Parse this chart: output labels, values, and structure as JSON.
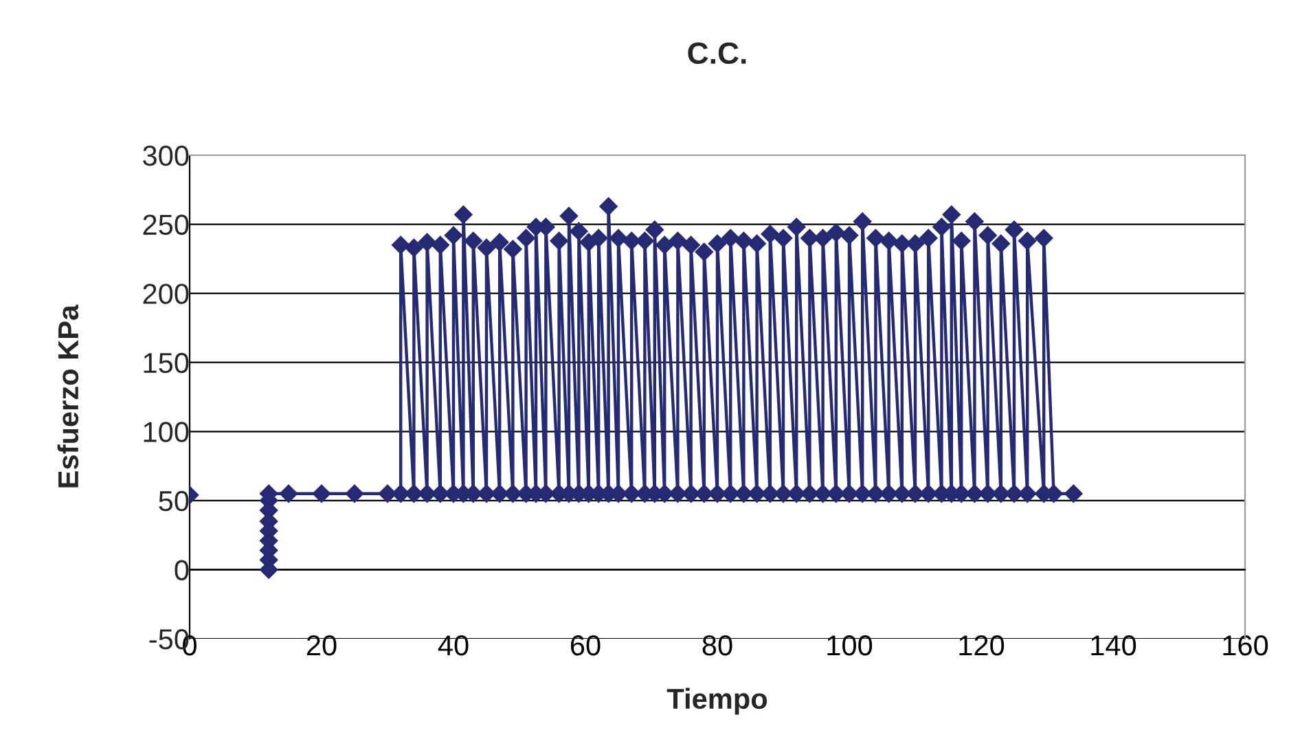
{
  "chart_data": {
    "type": "line",
    "title": "C.C.",
    "xlabel": "Tiempo",
    "ylabel": "Esfuerzo KPa",
    "xlim": [
      0,
      160
    ],
    "xticks": [
      0,
      20,
      40,
      60,
      80,
      100,
      120,
      140,
      160
    ],
    "ylim": [
      -50,
      300
    ],
    "yticks": [
      -50,
      0,
      50,
      100,
      150,
      200,
      250,
      300
    ],
    "grid": "y",
    "legend": false,
    "marker": "diamond",
    "line_style": "solid",
    "series": [
      {
        "color": "#262a73",
        "x": [
          0,
          6,
          12,
          12,
          12,
          12,
          12,
          12,
          12,
          12,
          12,
          15,
          20,
          25,
          30,
          32,
          32,
          34,
          34,
          36,
          36,
          38,
          38,
          40,
          40,
          41.5,
          41.5,
          43,
          43,
          45,
          45,
          47,
          47,
          49,
          49,
          51,
          51,
          52.5,
          52.5,
          54,
          54,
          56,
          56,
          57.5,
          57.5,
          59,
          59,
          60.5,
          60.5,
          62,
          62,
          63.5,
          63.5,
          65,
          65,
          67,
          67,
          69,
          69,
          70.5,
          70.5,
          72,
          72,
          74,
          74,
          76,
          76,
          78,
          78,
          80,
          80,
          82,
          82,
          84,
          84,
          86,
          86,
          88,
          88,
          90,
          90,
          92,
          92,
          94,
          94,
          96,
          96,
          98,
          98,
          100,
          100,
          102,
          102,
          104,
          104,
          106,
          106,
          108,
          108,
          110,
          110,
          112,
          112,
          114,
          114,
          115.5,
          115.5,
          117,
          117,
          119,
          119,
          121,
          121,
          123,
          123,
          125,
          125,
          127,
          127,
          129.5,
          129.5,
          131,
          134
        ],
        "values": [
          54,
          null,
          0,
          7,
          14,
          21,
          28,
          35,
          43,
          50,
          55,
          55,
          55,
          55,
          55,
          55,
          235,
          55,
          233,
          55,
          237,
          55,
          235,
          55,
          242,
          55,
          257,
          55,
          238,
          55,
          233,
          55,
          237,
          55,
          232,
          55,
          240,
          55,
          248,
          55,
          248,
          55,
          238,
          55,
          256,
          55,
          245,
          55,
          237,
          55,
          240,
          55,
          263,
          55,
          240,
          55,
          238,
          55,
          238,
          55,
          246,
          55,
          235,
          55,
          238,
          55,
          235,
          55,
          230,
          55,
          236,
          55,
          240,
          55,
          238,
          55,
          236,
          55,
          243,
          55,
          240,
          55,
          248,
          55,
          240,
          55,
          240,
          55,
          244,
          55,
          242,
          55,
          252,
          55,
          240,
          55,
          238,
          55,
          236,
          55,
          236,
          55,
          240,
          55,
          248,
          55,
          257,
          55,
          238,
          55,
          252,
          55,
          242,
          55,
          236,
          55,
          246,
          55,
          238,
          55,
          240,
          55,
          55
        ]
      }
    ]
  }
}
